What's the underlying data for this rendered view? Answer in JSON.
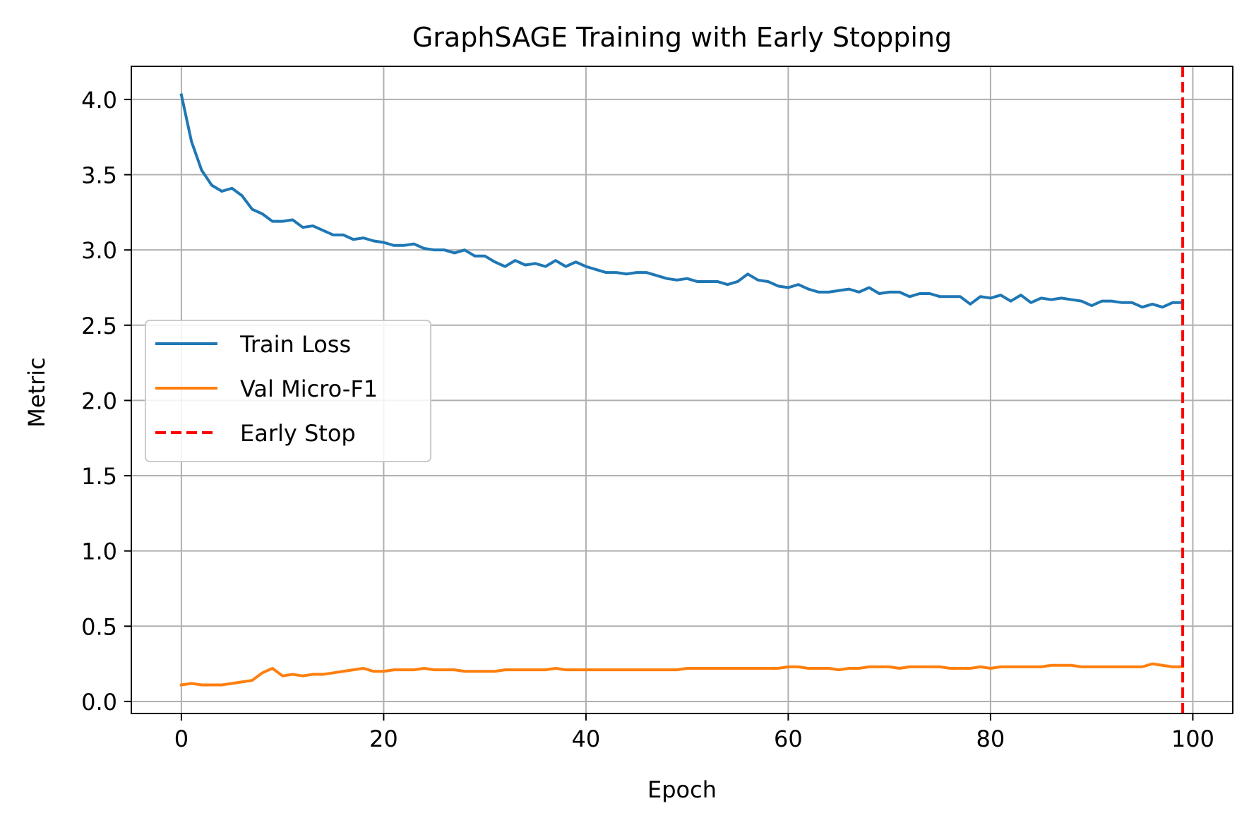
{
  "chart_data": {
    "type": "line",
    "title": "GraphSAGE Training with Early Stopping",
    "xlabel": "Epoch",
    "ylabel": "Metric",
    "xlim": [
      -4.95,
      103.95
    ],
    "ylim": [
      -0.08,
      4.22
    ],
    "xticks": [
      0,
      20,
      40,
      60,
      80,
      100
    ],
    "xtick_labels": [
      "0",
      "20",
      "40",
      "60",
      "80",
      "100"
    ],
    "yticks": [
      0.0,
      0.5,
      1.0,
      1.5,
      2.0,
      2.5,
      3.0,
      3.5,
      4.0
    ],
    "ytick_labels": [
      "0.0",
      "0.5",
      "1.0",
      "1.5",
      "2.0",
      "2.5",
      "3.0",
      "3.5",
      "4.0"
    ],
    "grid": true,
    "legend_position": "center-left",
    "series": [
      {
        "name": "Train Loss",
        "color": "#1f77b4",
        "style": "solid",
        "x": [
          0,
          1,
          2,
          3,
          4,
          5,
          6,
          7,
          8,
          9,
          10,
          11,
          12,
          13,
          14,
          15,
          16,
          17,
          18,
          19,
          20,
          21,
          22,
          23,
          24,
          25,
          26,
          27,
          28,
          29,
          30,
          31,
          32,
          33,
          34,
          35,
          36,
          37,
          38,
          39,
          40,
          41,
          42,
          43,
          44,
          45,
          46,
          47,
          48,
          49,
          50,
          51,
          52,
          53,
          54,
          55,
          56,
          57,
          58,
          59,
          60,
          61,
          62,
          63,
          64,
          65,
          66,
          67,
          68,
          69,
          70,
          71,
          72,
          73,
          74,
          75,
          76,
          77,
          78,
          79,
          80,
          81,
          82,
          83,
          84,
          85,
          86,
          87,
          88,
          89,
          90,
          91,
          92,
          93,
          94,
          95,
          96,
          97,
          98,
          99
        ],
        "values": [
          4.03,
          3.72,
          3.53,
          3.43,
          3.39,
          3.41,
          3.36,
          3.27,
          3.24,
          3.19,
          3.19,
          3.2,
          3.15,
          3.16,
          3.13,
          3.1,
          3.1,
          3.07,
          3.08,
          3.06,
          3.05,
          3.03,
          3.03,
          3.04,
          3.01,
          3.0,
          3.0,
          2.98,
          3.0,
          2.96,
          2.96,
          2.92,
          2.89,
          2.93,
          2.9,
          2.91,
          2.89,
          2.93,
          2.89,
          2.92,
          2.89,
          2.87,
          2.85,
          2.85,
          2.84,
          2.85,
          2.85,
          2.83,
          2.81,
          2.8,
          2.81,
          2.79,
          2.79,
          2.79,
          2.77,
          2.79,
          2.84,
          2.8,
          2.79,
          2.76,
          2.75,
          2.77,
          2.74,
          2.72,
          2.72,
          2.73,
          2.74,
          2.72,
          2.75,
          2.71,
          2.72,
          2.72,
          2.69,
          2.71,
          2.71,
          2.69,
          2.69,
          2.69,
          2.64,
          2.69,
          2.68,
          2.7,
          2.66,
          2.7,
          2.65,
          2.68,
          2.67,
          2.68,
          2.67,
          2.66,
          2.63,
          2.66,
          2.66,
          2.65,
          2.65,
          2.62,
          2.64,
          2.62,
          2.65,
          2.65
        ]
      },
      {
        "name": "Val Micro-F1",
        "color": "#ff7f0e",
        "style": "solid",
        "x": [
          0,
          1,
          2,
          3,
          4,
          5,
          6,
          7,
          8,
          9,
          10,
          11,
          12,
          13,
          14,
          15,
          16,
          17,
          18,
          19,
          20,
          21,
          22,
          23,
          24,
          25,
          26,
          27,
          28,
          29,
          30,
          31,
          32,
          33,
          34,
          35,
          36,
          37,
          38,
          39,
          40,
          41,
          42,
          43,
          44,
          45,
          46,
          47,
          48,
          49,
          50,
          51,
          52,
          53,
          54,
          55,
          56,
          57,
          58,
          59,
          60,
          61,
          62,
          63,
          64,
          65,
          66,
          67,
          68,
          69,
          70,
          71,
          72,
          73,
          74,
          75,
          76,
          77,
          78,
          79,
          80,
          81,
          82,
          83,
          84,
          85,
          86,
          87,
          88,
          89,
          90,
          91,
          92,
          93,
          94,
          95,
          96,
          97,
          98,
          99
        ],
        "values": [
          0.11,
          0.12,
          0.11,
          0.11,
          0.11,
          0.12,
          0.13,
          0.14,
          0.19,
          0.22,
          0.17,
          0.18,
          0.17,
          0.18,
          0.18,
          0.19,
          0.2,
          0.21,
          0.22,
          0.2,
          0.2,
          0.21,
          0.21,
          0.21,
          0.22,
          0.21,
          0.21,
          0.21,
          0.2,
          0.2,
          0.2,
          0.2,
          0.21,
          0.21,
          0.21,
          0.21,
          0.21,
          0.22,
          0.21,
          0.21,
          0.21,
          0.21,
          0.21,
          0.21,
          0.21,
          0.21,
          0.21,
          0.21,
          0.21,
          0.21,
          0.22,
          0.22,
          0.22,
          0.22,
          0.22,
          0.22,
          0.22,
          0.22,
          0.22,
          0.22,
          0.23,
          0.23,
          0.22,
          0.22,
          0.22,
          0.21,
          0.22,
          0.22,
          0.23,
          0.23,
          0.23,
          0.22,
          0.23,
          0.23,
          0.23,
          0.23,
          0.22,
          0.22,
          0.22,
          0.23,
          0.22,
          0.23,
          0.23,
          0.23,
          0.23,
          0.23,
          0.24,
          0.24,
          0.24,
          0.23,
          0.23,
          0.23,
          0.23,
          0.23,
          0.23,
          0.23,
          0.25,
          0.24,
          0.23,
          0.23
        ]
      }
    ],
    "vlines": [
      {
        "name": "Early Stop",
        "x": 99,
        "color": "#ff0000",
        "style": "dashed"
      }
    ]
  }
}
